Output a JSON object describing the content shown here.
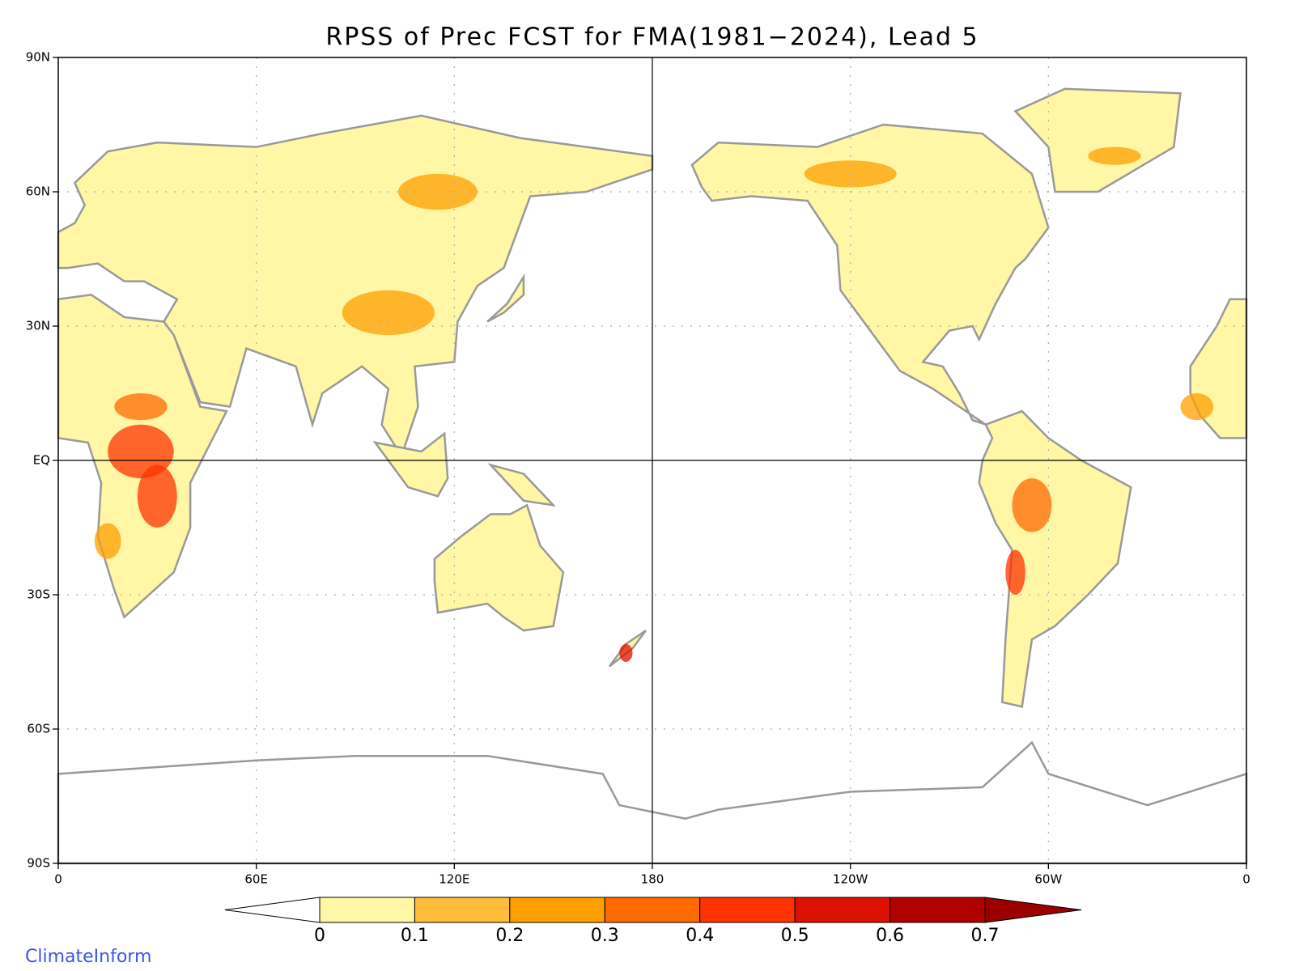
{
  "title": "RPSS of Prec FCST for FMA(1981−2024), Lead 5",
  "map": {
    "lon_ticks": [
      0,
      {
        "value": 60,
        "label": "60E"
      },
      {
        "value": 120,
        "label": "120E"
      },
      180,
      {
        "value": 240,
        "label": "120W"
      },
      {
        "value": 300,
        "label": "60W"
      },
      {
        "value": 360,
        "label": "0"
      }
    ],
    "lat_ticks": [
      {
        "value": 90,
        "label": "90N"
      },
      {
        "value": 60,
        "label": "60N"
      },
      {
        "value": 30,
        "label": "30N"
      },
      {
        "value": 0,
        "label": "EQ"
      },
      {
        "value": -30,
        "label": "30S"
      },
      {
        "value": -60,
        "label": "60S"
      },
      {
        "value": -90,
        "label": "90S"
      }
    ],
    "lonlim": [
      0,
      360
    ],
    "latlim": [
      -90,
      90
    ]
  },
  "colorbar": {
    "levels": [
      0,
      0.1,
      0.2,
      0.3,
      0.4,
      0.5,
      0.6,
      0.7
    ],
    "colors": [
      "#ffffff",
      "#fff6a6",
      "#ffbd3a",
      "#ff9f00",
      "#ff6a00",
      "#ff3300",
      "#dd1100",
      "#b00000",
      "#9a0000"
    ]
  },
  "credit": "ClimateInform"
}
